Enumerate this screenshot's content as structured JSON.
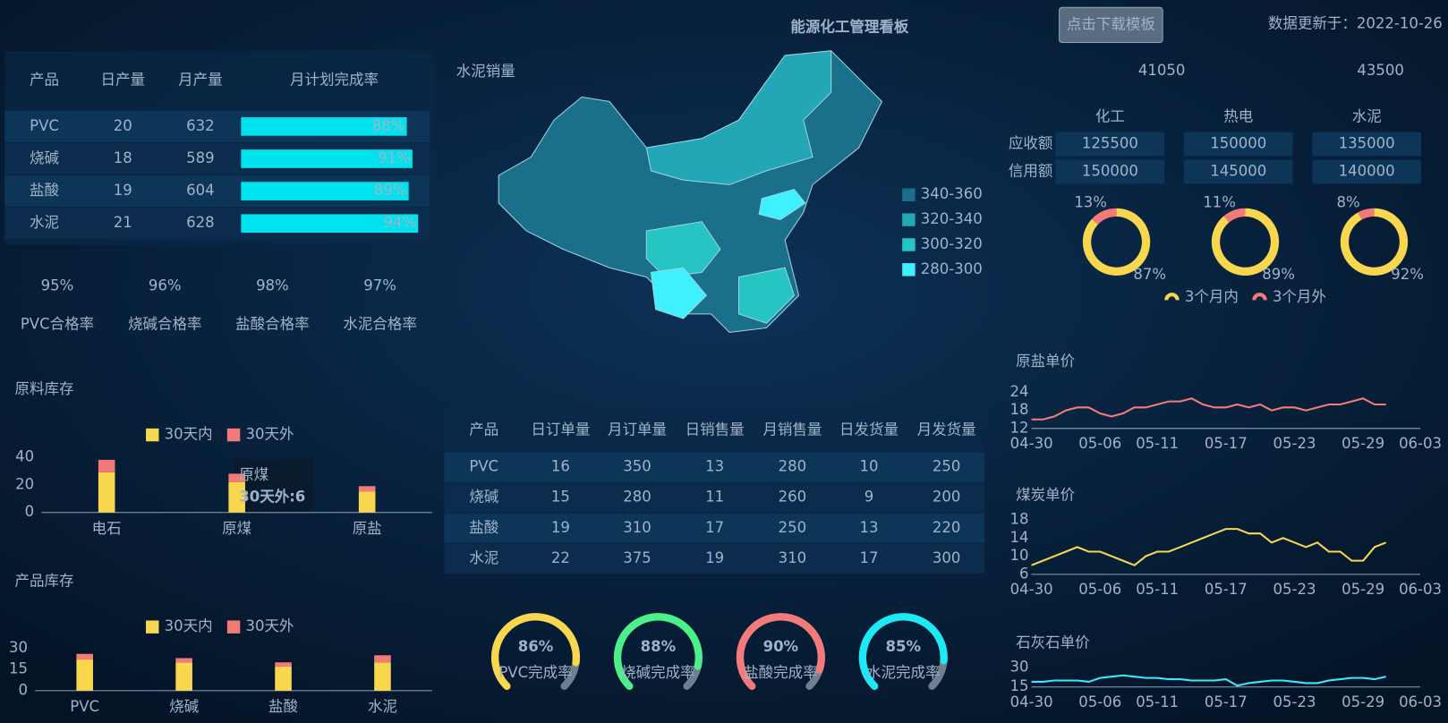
{
  "header": {
    "title": "能源化工管理看板",
    "button": "点击下载模板",
    "updated": "数据更新于：2022-10-26"
  },
  "production": {
    "columns": [
      "产品",
      "日产量",
      "月产量",
      "月计划完成率"
    ],
    "rows": [
      [
        "PVC",
        20,
        632
      ],
      [
        "烧碱",
        18,
        589
      ],
      [
        "盐酸",
        19,
        604
      ],
      [
        "水泥",
        21,
        628
      ]
    ],
    "rate": {
      "values": [
        88,
        91,
        89,
        94
      ],
      "value_labels": [
        "88%",
        "91%",
        "89%",
        "94%"
      ],
      "xlim": [
        0,
        100
      ],
      "color": "#00e3ee"
    }
  },
  "quality": {
    "items": [
      {
        "value": 95,
        "label": "95%",
        "name": "PVC合格率",
        "color": "#1de9f5"
      },
      {
        "value": 96,
        "label": "96%",
        "name": "烧碱合格率",
        "color": "#f8d74f"
      },
      {
        "value": 98,
        "label": "98%",
        "name": "盐酸合格率",
        "color": "#4cf08a"
      },
      {
        "value": 97,
        "label": "97%",
        "name": "水泥合格率",
        "color": "#f47a7a"
      }
    ]
  },
  "raw_stock": {
    "type": "bar",
    "stacked": true,
    "title": "原料库存",
    "categories": [
      "电石",
      "原煤",
      "原盐"
    ],
    "series": [
      {
        "name": "30天内",
        "color": "#f8d74f",
        "values": [
          29,
          22,
          15
        ]
      },
      {
        "name": "30天外",
        "color": "#f47a7a",
        "values": [
          9,
          6,
          4
        ]
      }
    ],
    "ylim": [
      0,
      40
    ],
    "yticks": [
      0,
      20,
      40
    ],
    "tooltip": {
      "title": "原煤",
      "text": "30天外:6"
    }
  },
  "product_stock": {
    "type": "bar",
    "stacked": true,
    "title": "产品库存",
    "categories": [
      "PVC",
      "烧碱",
      "盐酸",
      "水泥"
    ],
    "series": [
      {
        "name": "30天内",
        "color": "#f8d74f",
        "values": [
          22,
          20,
          17,
          20
        ]
      },
      {
        "name": "30天外",
        "color": "#f47a7a",
        "values": [
          4,
          3,
          3,
          5
        ]
      }
    ],
    "ylim": [
      0,
      30
    ],
    "yticks": [
      0,
      15,
      30
    ]
  },
  "map": {
    "title": "水泥销量",
    "legend": [
      {
        "label": "340-360",
        "color": "#1a6f8a"
      },
      {
        "label": "320-340",
        "color": "#23a6b6"
      },
      {
        "label": "300-320",
        "color": "#27c4c4"
      },
      {
        "label": "280-300",
        "color": "#3ff0ff"
      }
    ]
  },
  "receivables": {
    "totals": [
      {
        "value": 41050,
        "color": "#1de9f5"
      },
      {
        "value": 43500,
        "color": "#f47a7a"
      }
    ],
    "columns": [
      "化工",
      "热电",
      "水泥"
    ],
    "rows": [
      {
        "name": "应收额",
        "values": [
          125500,
          150000,
          135000
        ]
      },
      {
        "name": "信用额",
        "values": [
          150000,
          145000,
          140000
        ]
      }
    ]
  },
  "donuts": {
    "type": "pie",
    "series": [
      {
        "name": "3个月内",
        "color": "#f8d74f"
      },
      {
        "name": "3个月外",
        "color": "#f47a7a"
      }
    ],
    "items": [
      {
        "values": [
          87,
          13
        ],
        "value_labels": [
          "87%",
          "13%"
        ]
      },
      {
        "values": [
          89,
          11
        ],
        "value_labels": [
          "89%",
          "11%"
        ]
      },
      {
        "values": [
          92,
          8
        ],
        "value_labels": [
          "92%",
          "8%"
        ]
      }
    ]
  },
  "sales": {
    "columns": [
      "产品",
      "日订单量",
      "月订单量",
      "日销售量",
      "月销售量",
      "日发货量",
      "月发货量"
    ],
    "rows": [
      [
        "PVC",
        16,
        350,
        13,
        280,
        10,
        250
      ],
      [
        "烧碱",
        15,
        280,
        11,
        260,
        9,
        200
      ],
      [
        "盐酸",
        19,
        310,
        17,
        250,
        13,
        220
      ],
      [
        "水泥",
        22,
        375,
        19,
        310,
        17,
        300
      ]
    ]
  },
  "gauges": {
    "ylim": [
      0,
      100
    ],
    "items": [
      {
        "value": 86,
        "label": "86%",
        "name": "PVC完成率",
        "color": "#f8d74f"
      },
      {
        "value": 88,
        "label": "88%",
        "name": "烧碱完成率",
        "color": "#4cf08a"
      },
      {
        "value": 90,
        "label": "90%",
        "name": "盐酸完成率",
        "color": "#f47a7a"
      },
      {
        "value": 85,
        "label": "85%",
        "name": "水泥完成率",
        "color": "#1de9f5"
      }
    ]
  },
  "prices": [
    {
      "type": "line",
      "title": "原盐单价",
      "color": "#f47a7a",
      "ylim": [
        12,
        24
      ],
      "yticks": [
        12,
        18,
        24
      ],
      "categories": [
        "04-30",
        null,
        null,
        null,
        null,
        null,
        "05-06",
        null,
        null,
        null,
        null,
        "05-11",
        null,
        null,
        null,
        null,
        null,
        "05-17",
        null,
        null,
        null,
        null,
        null,
        "05-23",
        null,
        null,
        null,
        null,
        null,
        "05-29",
        null,
        null,
        null,
        null,
        "06-03"
      ],
      "values": [
        15,
        15,
        16,
        18,
        19,
        19,
        17,
        16,
        17,
        19,
        19,
        20,
        21,
        21,
        22,
        20,
        19,
        19,
        20,
        19,
        20,
        18,
        19,
        19,
        18,
        19,
        20,
        20,
        21,
        22,
        20,
        20,
        null,
        null,
        null
      ]
    },
    {
      "type": "line",
      "title": "煤炭单价",
      "color": "#f8d74f",
      "ylim": [
        6,
        18
      ],
      "yticks": [
        6,
        10,
        14,
        18
      ],
      "categories": [
        "04-30",
        null,
        null,
        null,
        null,
        null,
        "05-06",
        null,
        null,
        null,
        null,
        "05-11",
        null,
        null,
        null,
        null,
        null,
        "05-17",
        null,
        null,
        null,
        null,
        null,
        "05-23",
        null,
        null,
        null,
        null,
        null,
        "05-29",
        null,
        null,
        null,
        null,
        "06-03"
      ],
      "values": [
        8,
        9,
        10,
        11,
        12,
        11,
        11,
        10,
        9,
        8,
        10,
        11,
        11,
        12,
        13,
        14,
        15,
        16,
        16,
        15,
        15,
        13,
        14,
        13,
        12,
        13,
        11,
        11,
        9,
        9,
        12,
        13,
        null,
        null,
        null
      ]
    },
    {
      "type": "line",
      "title": "石灰石单价",
      "color": "#3fe8f8",
      "ylim": [
        15,
        30
      ],
      "yticks": [
        15,
        30
      ],
      "categories": [
        "04-30",
        null,
        null,
        null,
        null,
        null,
        "05-06",
        null,
        null,
        null,
        null,
        "05-11",
        null,
        null,
        null,
        null,
        null,
        "05-17",
        null,
        null,
        null,
        null,
        null,
        "05-23",
        null,
        null,
        null,
        null,
        null,
        "05-29",
        null,
        null,
        null,
        null,
        "06-03"
      ],
      "values": [
        19,
        19,
        20,
        20,
        20,
        19,
        22,
        23,
        24,
        23,
        22,
        22,
        21,
        21,
        20,
        20,
        20,
        21,
        16,
        18,
        19,
        20,
        20,
        19,
        18,
        18,
        20,
        21,
        22,
        22,
        21,
        23,
        null,
        null,
        null
      ]
    }
  ]
}
